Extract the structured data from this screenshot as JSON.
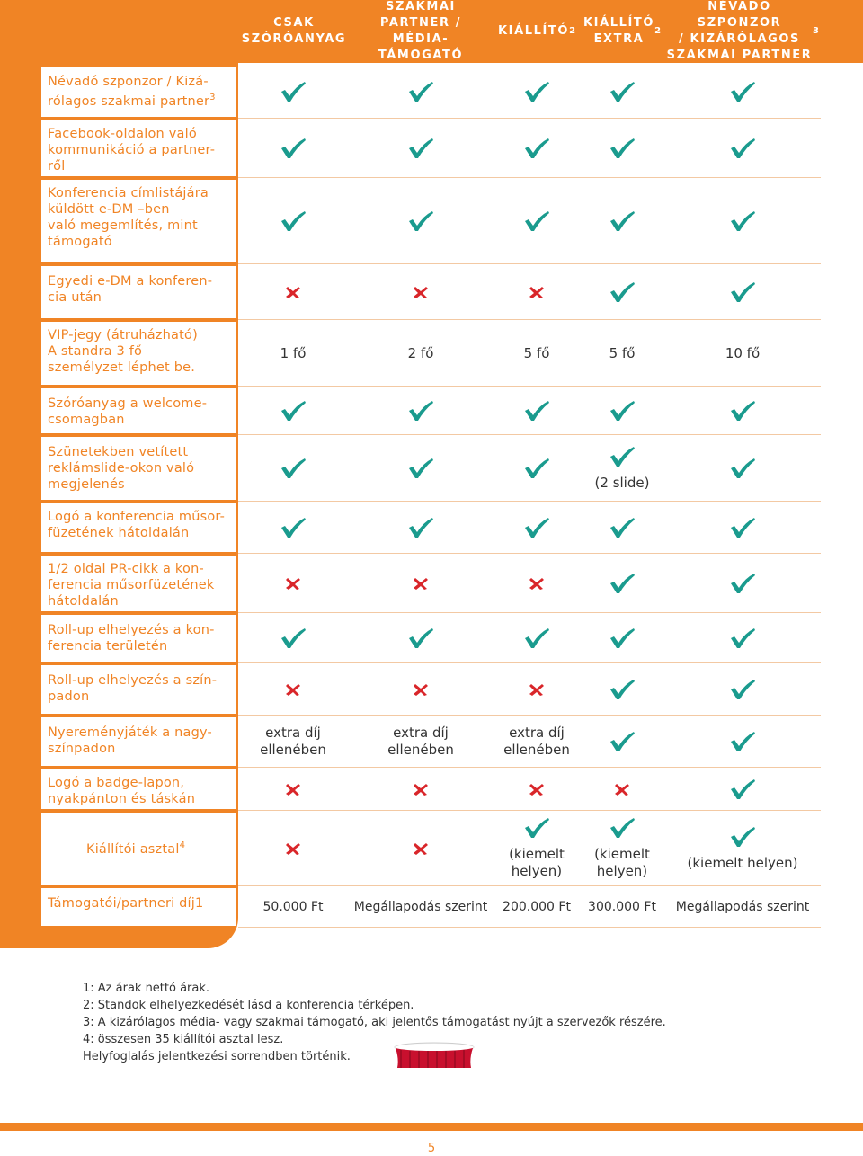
{
  "columns": [
    {
      "label": "CSAK\nSZÓRÓANYAG",
      "sup": ""
    },
    {
      "label": "SZAKMAI\nPARTNER / MÉDIA-\nTÁMOGATÓ",
      "sup": ""
    },
    {
      "label": "KIÁLLÍTÓ",
      "sup": "2"
    },
    {
      "label": "KIÁLLÍTÓ\nEXTRA",
      "sup": "2"
    },
    {
      "label": "NÉVADÓ SZPONZOR\n/ KIZÁRÓLAGOS\nSZAKMAI PARTNER",
      "sup": "3"
    }
  ],
  "rows": [
    {
      "label": "Névadó szponzor / Kizá-\nrólagos szakmai partner",
      "sup": "3",
      "cells": [
        {
          "t": "check"
        },
        {
          "t": "check"
        },
        {
          "t": "check"
        },
        {
          "t": "check"
        },
        {
          "t": "check"
        }
      ]
    },
    {
      "label": "Facebook-oldalon való\nkommunikáció a partner-\nről",
      "sup": "",
      "cells": [
        {
          "t": "check"
        },
        {
          "t": "check"
        },
        {
          "t": "check"
        },
        {
          "t": "check"
        },
        {
          "t": "check"
        }
      ]
    },
    {
      "label": "Konferencia címlistájára\nküldött e-DM –ben\nvaló megemlítés, mint\ntámogató",
      "sup": "",
      "cells": [
        {
          "t": "check"
        },
        {
          "t": "check"
        },
        {
          "t": "check"
        },
        {
          "t": "check"
        },
        {
          "t": "check"
        }
      ]
    },
    {
      "label": "Egyedi e-DM a konferen-\ncia után",
      "sup": "",
      "cells": [
        {
          "t": "cross"
        },
        {
          "t": "cross"
        },
        {
          "t": "cross"
        },
        {
          "t": "check"
        },
        {
          "t": "check"
        }
      ]
    },
    {
      "label": "VIP-jegy (átruházható)\nA standra 3 fő\nszemélyzet léphet be.",
      "sup": "",
      "cells": [
        {
          "t": "text",
          "v": "1 fő"
        },
        {
          "t": "text",
          "v": "2 fő"
        },
        {
          "t": "text",
          "v": "5 fő"
        },
        {
          "t": "text",
          "v": "5 fő"
        },
        {
          "t": "text",
          "v": "10 fő"
        }
      ]
    },
    {
      "label": "Szóróanyag a welcome-\ncsomagban",
      "sup": "",
      "cells": [
        {
          "t": "check"
        },
        {
          "t": "check"
        },
        {
          "t": "check"
        },
        {
          "t": "check"
        },
        {
          "t": "check"
        }
      ]
    },
    {
      "label": "Szünetekben vetített\nreklámslide-okon való\nmegjelenés",
      "sup": "",
      "cells": [
        {
          "t": "check"
        },
        {
          "t": "check"
        },
        {
          "t": "check"
        },
        {
          "t": "checktext",
          "v": "(2 slide)"
        },
        {
          "t": "check"
        }
      ]
    },
    {
      "label": "Logó a konferencia műsor-\nfüzetének hátoldalán",
      "sup": "",
      "cells": [
        {
          "t": "check"
        },
        {
          "t": "check"
        },
        {
          "t": "check"
        },
        {
          "t": "check"
        },
        {
          "t": "check"
        }
      ]
    },
    {
      "label": "1/2 oldal PR-cikk a kon-\nferencia műsorfüzetének\nhátoldalán",
      "sup": "",
      "cells": [
        {
          "t": "cross"
        },
        {
          "t": "cross"
        },
        {
          "t": "cross"
        },
        {
          "t": "check"
        },
        {
          "t": "check"
        }
      ]
    },
    {
      "label": "Roll-up elhelyezés a kon-\nferencia területén",
      "sup": "",
      "cells": [
        {
          "t": "check"
        },
        {
          "t": "check"
        },
        {
          "t": "check"
        },
        {
          "t": "check"
        },
        {
          "t": "check"
        }
      ]
    },
    {
      "label": "Roll-up elhelyezés a szín-\npadon",
      "sup": "",
      "cells": [
        {
          "t": "cross"
        },
        {
          "t": "cross"
        },
        {
          "t": "cross"
        },
        {
          "t": "check"
        },
        {
          "t": "check"
        }
      ]
    },
    {
      "label": "Nyereményjáték a nagy-\nszínpadon",
      "sup": "",
      "cells": [
        {
          "t": "text",
          "v": "extra díj\nellenében"
        },
        {
          "t": "text",
          "v": "extra díj\nellenében"
        },
        {
          "t": "text",
          "v": "extra díj\nellenében"
        },
        {
          "t": "check"
        },
        {
          "t": "check"
        }
      ]
    },
    {
      "label": "Logó a badge-lapon,\nnyakpánton és táskán",
      "sup": "",
      "cells": [
        {
          "t": "cross"
        },
        {
          "t": "cross"
        },
        {
          "t": "cross"
        },
        {
          "t": "cross"
        },
        {
          "t": "check"
        }
      ]
    },
    {
      "label": "Kiállítói asztal",
      "sup": "4",
      "cells": [
        {
          "t": "cross"
        },
        {
          "t": "cross"
        },
        {
          "t": "checktext",
          "v": "(kiemelt\nhelyen)"
        },
        {
          "t": "checktext",
          "v": "(kiemelt\nhelyen)"
        },
        {
          "t": "checktext",
          "v": "(kiemelt helyen)"
        }
      ]
    },
    {
      "label": "Támogatói/partneri díj1",
      "sup": "",
      "cells": [
        {
          "t": "text",
          "v": "50.000 Ft"
        },
        {
          "t": "text",
          "v": "Megállapodás szerint"
        },
        {
          "t": "text",
          "v": "200.000 Ft"
        },
        {
          "t": "text",
          "v": "300.000 Ft"
        },
        {
          "t": "text",
          "v": "Megállapodás szerint"
        }
      ]
    }
  ],
  "footnotes": [
    "1: Az árak nettó árak.",
    "2: Standok elhelyezkedését lásd a konferencia térképen.",
    "3: A kizárólagos média- vagy szakmai támogató, aki jelentős támogatást nyújt a szervezők részére.",
    "4: összesen 35 kiállítói asztal lesz.",
    "Helyfoglalás jelentkezési sorrendben történik."
  ],
  "page_number": "5",
  "colors": {
    "accent": "#f08425",
    "check": "#1a9b8e",
    "cross": "#d9262a"
  }
}
